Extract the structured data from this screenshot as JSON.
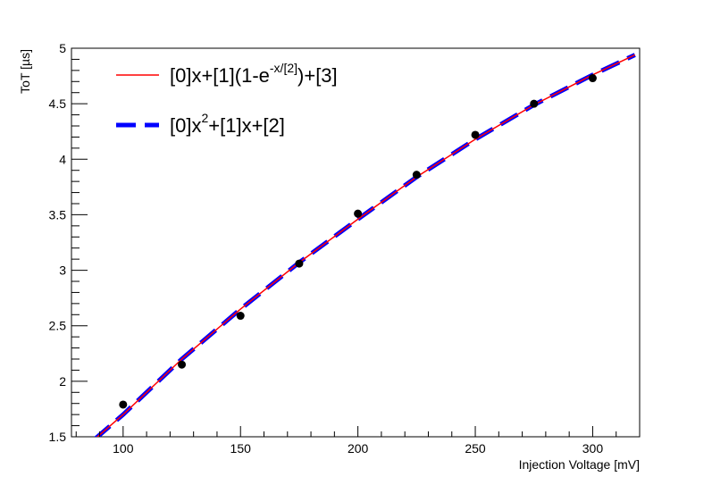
{
  "chart_data": {
    "type": "scatter",
    "title": "",
    "xlabel": "Injection Voltage [mV]",
    "ylabel": "ToT [µs]",
    "xlim": [
      78,
      320
    ],
    "ylim": [
      1.5,
      5.0
    ],
    "x_ticks": [
      100,
      150,
      200,
      250,
      300
    ],
    "y_ticks": [
      1.5,
      2,
      2.5,
      3,
      3.5,
      4,
      4.5,
      5
    ],
    "x_tick_labels": [
      "100",
      "150",
      "200",
      "250",
      "300"
    ],
    "y_tick_labels": [
      "1.5",
      "2",
      "2.5",
      "3",
      "3.5",
      "4",
      "4.5",
      "5"
    ],
    "grid": false,
    "legend_position": "top-left",
    "series": [
      {
        "kind": "points",
        "color": "#000000",
        "x": [
          100,
          125,
          150,
          175,
          200,
          225,
          250,
          275,
          300
        ],
        "y": [
          1.79,
          2.15,
          2.59,
          3.06,
          3.51,
          3.86,
          4.22,
          4.5,
          4.73
        ]
      },
      {
        "name": "[0]x+[1](1-e-x/[2])+[3]",
        "kind": "line",
        "style": "solid",
        "color": "#ff0000",
        "x": [
          88,
          100,
          125,
          150,
          175,
          200,
          225,
          250,
          275,
          300,
          318
        ],
        "y": [
          1.48,
          1.7,
          2.2,
          2.65,
          3.07,
          3.46,
          3.84,
          4.18,
          4.49,
          4.76,
          4.94
        ]
      },
      {
        "name": "[0]x2+[1]x+[2]",
        "kind": "line",
        "style": "dashed",
        "color": "#0000ff",
        "x": [
          88,
          100,
          125,
          150,
          175,
          200,
          225,
          250,
          275,
          300,
          318
        ],
        "y": [
          1.48,
          1.7,
          2.2,
          2.65,
          3.07,
          3.46,
          3.84,
          4.18,
          4.49,
          4.76,
          4.94
        ]
      }
    ],
    "legend": [
      {
        "style": "solid",
        "color": "#ff0000",
        "text_main": "[0]x+[1](1-e",
        "text_sup": "-x/[2]",
        "text_tail": ")+[3]"
      },
      {
        "style": "dashed",
        "color": "#0000ff",
        "text_main": "[0]x",
        "text_sup": "2",
        "text_tail": "+[1]x+[2]"
      }
    ]
  }
}
